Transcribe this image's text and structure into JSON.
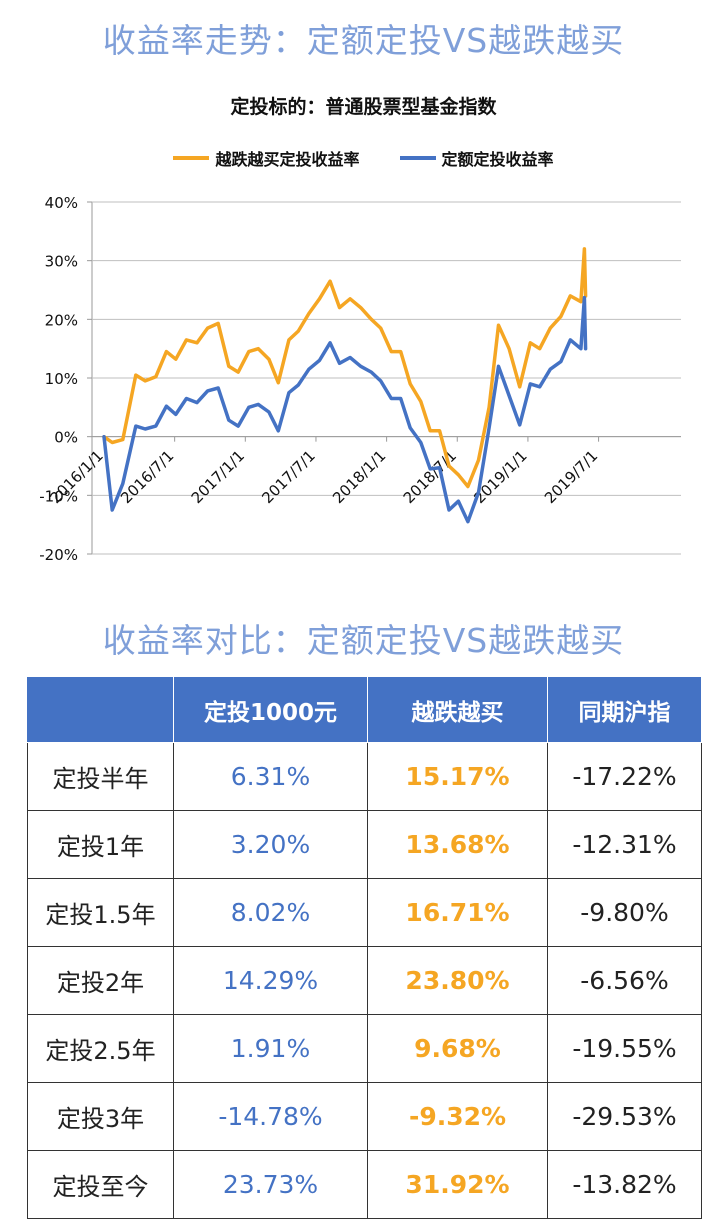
{
  "titles": {
    "trend": "收益率走势：定额定投VS越跌越买",
    "compare": "收益率对比：定额定投VS越跌越买"
  },
  "colors": {
    "buy_dips": "#f5a623",
    "fixed": "#4472c4",
    "title": "#7f9fd9",
    "header_bg": "#4472c4"
  },
  "chart_data": {
    "type": "line",
    "title": "定投标的：普通股票型基金指数",
    "xlabel": "",
    "ylabel": "",
    "ylim": [
      -20,
      40
    ],
    "yticks": [
      "40%",
      "30%",
      "20%",
      "10%",
      "0%",
      "-10%",
      "-20%"
    ],
    "ytick_values": [
      40,
      30,
      20,
      10,
      0,
      -10,
      -20
    ],
    "x_tick_labels": [
      "2016/1/1",
      "2016/7/1",
      "2017/1/1",
      "2017/7/1",
      "2018/1/1",
      "2018/7/1",
      "2019/1/1",
      "2019/7/1"
    ],
    "x_tick_months": [
      0,
      6,
      12,
      18,
      24,
      30,
      36,
      42
    ],
    "x_range_months": [
      0,
      49
    ],
    "grid": "horizontal",
    "legend_position": "top",
    "series": [
      {
        "name": "越跌越买定投收益率",
        "color": "#f5a623",
        "points": [
          [
            0,
            0
          ],
          [
            0.7,
            -1
          ],
          [
            1.6,
            -0.5
          ],
          [
            2.7,
            10.5
          ],
          [
            3.5,
            9.5
          ],
          [
            4.4,
            10.2
          ],
          [
            5.3,
            14.5
          ],
          [
            6.1,
            13.2
          ],
          [
            7,
            16.5
          ],
          [
            7.9,
            16
          ],
          [
            8.8,
            18.5
          ],
          [
            9.7,
            19.3
          ],
          [
            10.6,
            12
          ],
          [
            11.4,
            11
          ],
          [
            12.3,
            14.5
          ],
          [
            13.1,
            15
          ],
          [
            14,
            13.2
          ],
          [
            14.8,
            9.2
          ],
          [
            15.7,
            16.5
          ],
          [
            16.5,
            18
          ],
          [
            17.4,
            21
          ],
          [
            18.3,
            23.5
          ],
          [
            19.2,
            26.5
          ],
          [
            20,
            22
          ],
          [
            20.9,
            23.5
          ],
          [
            21.8,
            22
          ],
          [
            22.7,
            20
          ],
          [
            23.5,
            18.5
          ],
          [
            24.4,
            14.5
          ],
          [
            25.2,
            14.5
          ],
          [
            26,
            9
          ],
          [
            26.9,
            6
          ],
          [
            27.7,
            1
          ],
          [
            28.5,
            1
          ],
          [
            29.3,
            -5
          ],
          [
            30.1,
            -6.5
          ],
          [
            30.9,
            -8.5
          ],
          [
            31.8,
            -4
          ],
          [
            32.7,
            5
          ],
          [
            33.5,
            19
          ],
          [
            34.4,
            15
          ],
          [
            35.3,
            8.5
          ],
          [
            36.2,
            16
          ],
          [
            37,
            15
          ],
          [
            37.9,
            18.5
          ],
          [
            38.8,
            20.5
          ],
          [
            39.6,
            24
          ],
          [
            40.5,
            23
          ],
          [
            40.8,
            32
          ],
          [
            40.9,
            24
          ]
        ]
      },
      {
        "name": "定额定投收益率",
        "color": "#4472c4",
        "points": [
          [
            0,
            0
          ],
          [
            0.7,
            -12.5
          ],
          [
            1.6,
            -8
          ],
          [
            2.7,
            1.8
          ],
          [
            3.5,
            1.3
          ],
          [
            4.4,
            1.8
          ],
          [
            5.3,
            5.2
          ],
          [
            6.1,
            3.8
          ],
          [
            7,
            6.5
          ],
          [
            7.9,
            5.8
          ],
          [
            8.8,
            7.8
          ],
          [
            9.7,
            8.3
          ],
          [
            10.6,
            2.8
          ],
          [
            11.4,
            1.8
          ],
          [
            12.3,
            5
          ],
          [
            13.1,
            5.5
          ],
          [
            14,
            4.2
          ],
          [
            14.8,
            1
          ],
          [
            15.7,
            7.5
          ],
          [
            16.5,
            8.8
          ],
          [
            17.4,
            11.5
          ],
          [
            18.3,
            13
          ],
          [
            19.2,
            16
          ],
          [
            20,
            12.5
          ],
          [
            20.9,
            13.5
          ],
          [
            21.8,
            12
          ],
          [
            22.7,
            11
          ],
          [
            23.5,
            9.5
          ],
          [
            24.4,
            6.5
          ],
          [
            25.2,
            6.5
          ],
          [
            26,
            1.5
          ],
          [
            26.9,
            -1
          ],
          [
            27.7,
            -5.5
          ],
          [
            28.5,
            -5.3
          ],
          [
            29.3,
            -12.5
          ],
          [
            30.1,
            -11
          ],
          [
            30.9,
            -14.5
          ],
          [
            31.8,
            -9.5
          ],
          [
            32.7,
            1.5
          ],
          [
            33.5,
            12
          ],
          [
            34.4,
            7
          ],
          [
            35.3,
            2
          ],
          [
            36.2,
            9
          ],
          [
            37,
            8.5
          ],
          [
            37.9,
            11.5
          ],
          [
            38.8,
            12.8
          ],
          [
            39.6,
            16.5
          ],
          [
            40.5,
            15
          ],
          [
            40.8,
            23.7
          ],
          [
            40.9,
            15
          ]
        ]
      }
    ]
  },
  "table": {
    "headers": [
      "",
      "定投1000元",
      "越跌越买",
      "同期沪指"
    ],
    "rows": [
      {
        "label": "定投半年",
        "fixed": "6.31%",
        "buy_dips": "15.17%",
        "index": "-17.22%"
      },
      {
        "label": "定投1年",
        "fixed": "3.20%",
        "buy_dips": "13.68%",
        "index": "-12.31%"
      },
      {
        "label": "定投1.5年",
        "fixed": "8.02%",
        "buy_dips": "16.71%",
        "index": "-9.80%"
      },
      {
        "label": "定投2年",
        "fixed": "14.29%",
        "buy_dips": "23.80%",
        "index": "-6.56%"
      },
      {
        "label": "定投2.5年",
        "fixed": "1.91%",
        "buy_dips": "9.68%",
        "index": "-19.55%"
      },
      {
        "label": "定投3年",
        "fixed": "-14.78%",
        "buy_dips": "-9.32%",
        "index": "-29.53%"
      },
      {
        "label": "定投至今",
        "fixed": "23.73%",
        "buy_dips": "31.92%",
        "index": "-13.82%"
      }
    ]
  }
}
